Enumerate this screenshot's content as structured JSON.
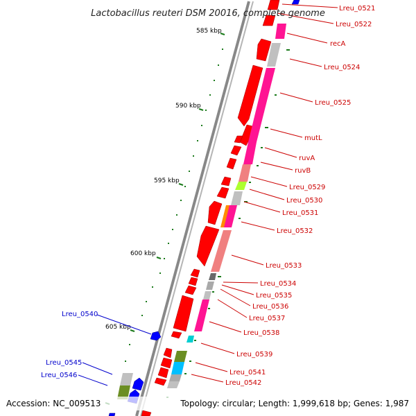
{
  "title": "Lactobacillus reuteri DSM 20016, complete genome",
  "footer": {
    "accession": "Accession: NC_009513",
    "topology": "Topology: circular; Length: 1,999,618 bp; Genes: 1,987"
  },
  "colors": {
    "forward_gene": "#ff0000",
    "reverse_gene": "#0000ff",
    "forward_label": "#cc0000",
    "reverse_label": "#0000cc",
    "backbone": "#808080",
    "tick": "#1a7a1a"
  },
  "kbp_ticks": [
    "585 kbp",
    "590 kbp",
    "595 kbp",
    "600 kbp",
    "605 kbp"
  ],
  "right_labels": [
    "Lreu_0521",
    "Lreu_0522",
    "recA",
    "Lreu_0524",
    "Lreu_0525",
    "mutL",
    "ruvA",
    "ruvB",
    "Lreu_0529",
    "Lreu_0530",
    "Lreu_0531",
    "Lreu_0532",
    "Lreu_0533",
    "Lreu_0534",
    "Lreu_0535",
    "Lreu_0536",
    "Lreu_0537",
    "Lreu_0538",
    "Lreu_0539",
    "Lreu_0541",
    "Lreu_0542"
  ],
  "left_labels": [
    "Lreu_0540",
    "Lreu_0545",
    "Lreu_0546"
  ]
}
